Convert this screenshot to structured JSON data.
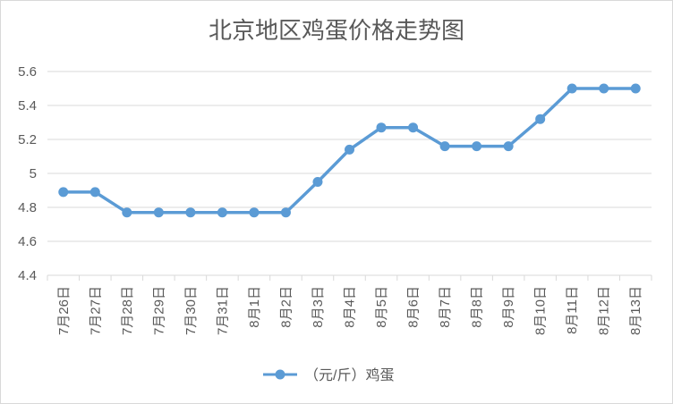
{
  "chart_data": {
    "type": "line",
    "title": "北京地区鸡蛋价格走势图",
    "xlabel": "",
    "ylabel": "",
    "categories": [
      "7月26日",
      "7月27日",
      "7月28日",
      "7月29日",
      "7月30日",
      "7月31日",
      "8月1日",
      "8月2日",
      "8月3日",
      "8月4日",
      "8月5日",
      "8月6日",
      "8月7日",
      "8月8日",
      "8月9日",
      "8月10日",
      "8月11日",
      "8月12日",
      "8月13日"
    ],
    "series": [
      {
        "name": "（元/斤）鸡蛋",
        "values": [
          4.89,
          4.89,
          4.77,
          4.77,
          4.77,
          4.77,
          4.77,
          4.77,
          4.95,
          5.14,
          5.27,
          5.27,
          5.16,
          5.16,
          5.16,
          5.32,
          5.5,
          5.5,
          5.5
        ]
      }
    ],
    "ylim": [
      4.4,
      5.6
    ],
    "yticks": [
      "4.4",
      "4.6",
      "4.8",
      "5",
      "5.2",
      "5.4",
      "5.6"
    ],
    "grid": true,
    "legend_position": "bottom",
    "colors": {
      "line": "#5b9bd5",
      "grid": "#d9d9d9",
      "text": "#595959"
    }
  }
}
